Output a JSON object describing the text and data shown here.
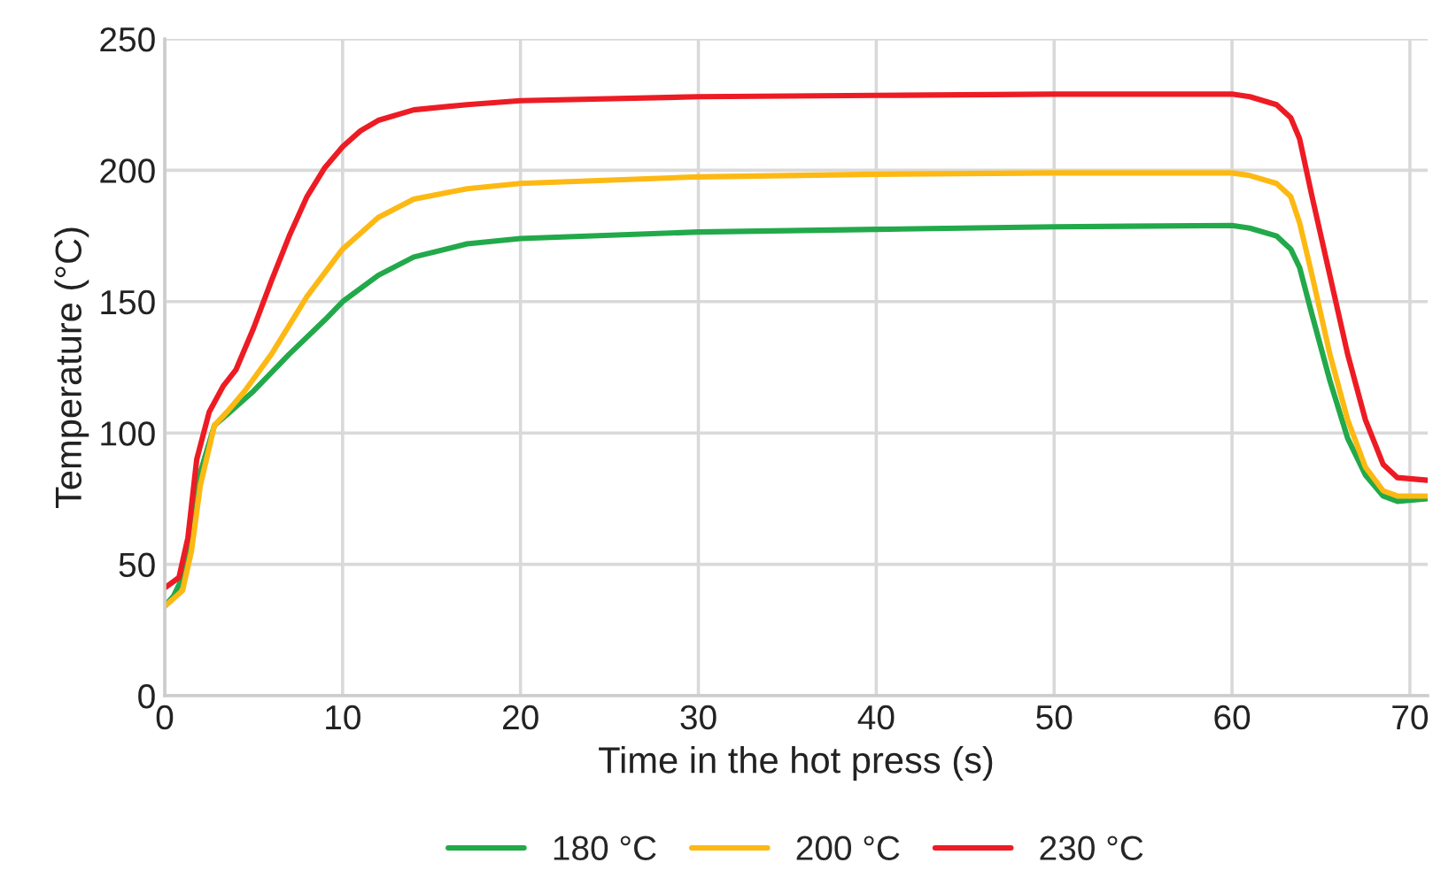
{
  "chart_data": {
    "type": "line",
    "xlabel": "Time in the hot press (s)",
    "ylabel": "Temperature (°C)",
    "xlim": [
      0,
      71
    ],
    "xticks": [
      0,
      10,
      20,
      30,
      40,
      50,
      60,
      70
    ],
    "ylim": [
      0,
      250
    ],
    "yticks": [
      0,
      50,
      100,
      150,
      200,
      250
    ],
    "grid": true,
    "legend": "bottom",
    "marker": "none",
    "line_style": "solid",
    "series": [
      {
        "name": "180 °C",
        "color": "#22a94a",
        "x": [
          0,
          0.5,
          1,
          1.5,
          2,
          2.8,
          3.5,
          5,
          7,
          9,
          10,
          12,
          14,
          17,
          20,
          30,
          40,
          50,
          60,
          61,
          62.5,
          63.3,
          63.8,
          64.5,
          65.5,
          66.5,
          67.5,
          68.5,
          69.3,
          71
        ],
        "values": [
          34,
          38,
          45,
          65,
          85,
          103,
          107,
          116,
          130,
          143,
          150,
          160,
          167,
          172,
          174,
          176.5,
          177.5,
          178.5,
          179,
          178,
          175,
          170,
          163,
          145,
          120,
          98,
          84,
          76,
          74,
          75
        ]
      },
      {
        "name": "200 °C",
        "color": "#fdb913",
        "x": [
          0,
          0.5,
          1,
          1.5,
          2,
          2.8,
          3.5,
          4.5,
          6,
          8,
          10,
          12,
          14,
          17,
          20,
          30,
          40,
          50,
          60,
          61,
          62.5,
          63.3,
          63.8,
          64.5,
          65.5,
          66.5,
          67.5,
          68.5,
          69.3,
          71
        ],
        "values": [
          34,
          37,
          40,
          55,
          80,
          103,
          108,
          116,
          130,
          152,
          170,
          182,
          189,
          193,
          195,
          197.5,
          198.5,
          199,
          199,
          198,
          195,
          190,
          180,
          160,
          130,
          105,
          87,
          78,
          76,
          76
        ]
      },
      {
        "name": "230 °C",
        "color": "#ed1c24",
        "x": [
          0,
          0.8,
          1.3,
          1.8,
          2.5,
          3.3,
          4,
          5,
          6,
          7,
          8,
          9,
          10,
          11,
          12,
          14,
          17,
          20,
          30,
          40,
          50,
          60,
          61,
          62.5,
          63.3,
          63.8,
          64.5,
          65.5,
          66.5,
          67.5,
          68.5,
          69.3,
          71
        ],
        "values": [
          41,
          45,
          60,
          90,
          108,
          118,
          124,
          140,
          158,
          175,
          190,
          201,
          209,
          215,
          219,
          223,
          225,
          226.5,
          228,
          228.5,
          229,
          229,
          228,
          225,
          220,
          212,
          190,
          160,
          130,
          105,
          88,
          83,
          82
        ]
      }
    ]
  }
}
